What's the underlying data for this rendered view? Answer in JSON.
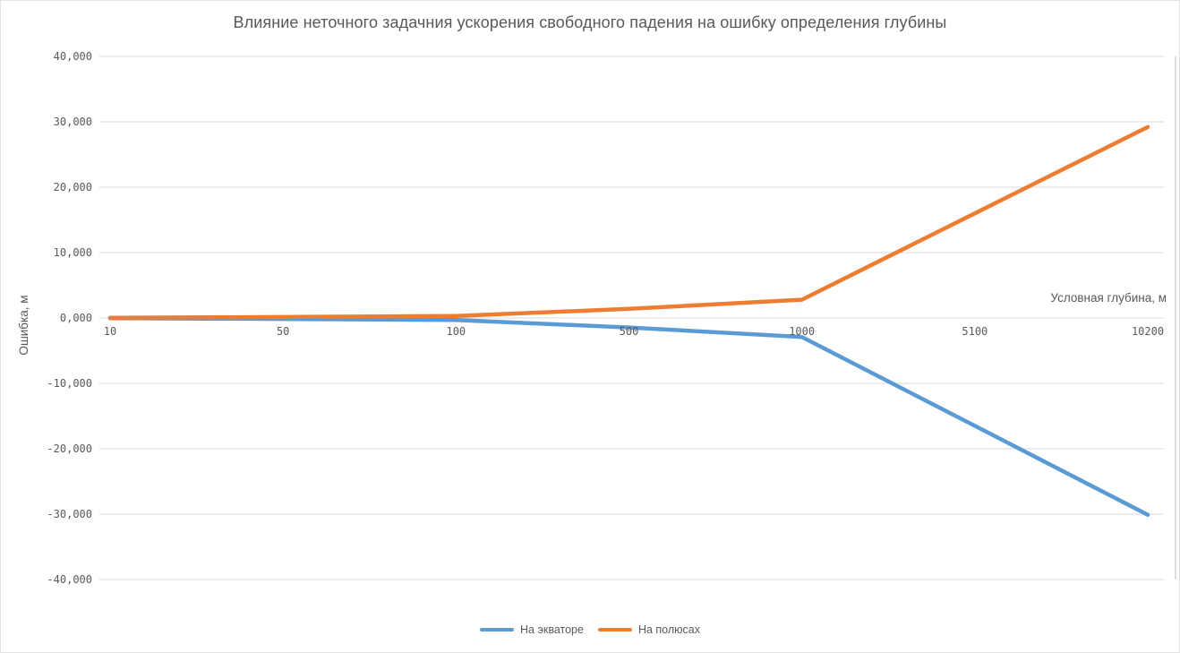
{
  "chart_data": {
    "type": "line",
    "title": "Влияние неточного задачния ускорения свободного падения на ошибку определения глубины",
    "xlabel": "Условная глубина, м",
    "ylabel": "Ошибка, м",
    "categories": [
      "10",
      "50",
      "100",
      "500",
      "1000",
      "5100",
      "10200"
    ],
    "x_values": [
      10,
      50,
      100,
      500,
      1000,
      5100,
      10200
    ],
    "y_tick_labels": [
      "40,000",
      "30,000",
      "20,000",
      "10,000",
      "0,000",
      "-10,000",
      "-20,000",
      "-30,000",
      "-40,000"
    ],
    "y_tick_values": [
      40,
      30,
      20,
      10,
      0,
      -10,
      -20,
      -30,
      -40
    ],
    "ylim": [
      -40,
      40
    ],
    "grid": "horizontal-only",
    "legend_position": "bottom-center",
    "series": [
      {
        "name": "На экваторе",
        "color": "#5B9BD5",
        "values": [
          -0.03,
          -0.15,
          -0.3,
          -1.45,
          -2.9,
          -16.5,
          -30.1
        ]
      },
      {
        "name": "На полюсах",
        "color": "#ED7D31",
        "values": [
          0.03,
          0.15,
          0.3,
          1.4,
          2.8,
          16.0,
          29.2
        ]
      }
    ]
  },
  "colors": {
    "text": "#595959",
    "gridline": "#D9D9D9",
    "axis_line": "#D9D9D9",
    "plot_right_border": "#C9C9C9",
    "background": "#FFFFFF",
    "series_equator": "#5B9BD5",
    "series_poles": "#ED7D31"
  }
}
